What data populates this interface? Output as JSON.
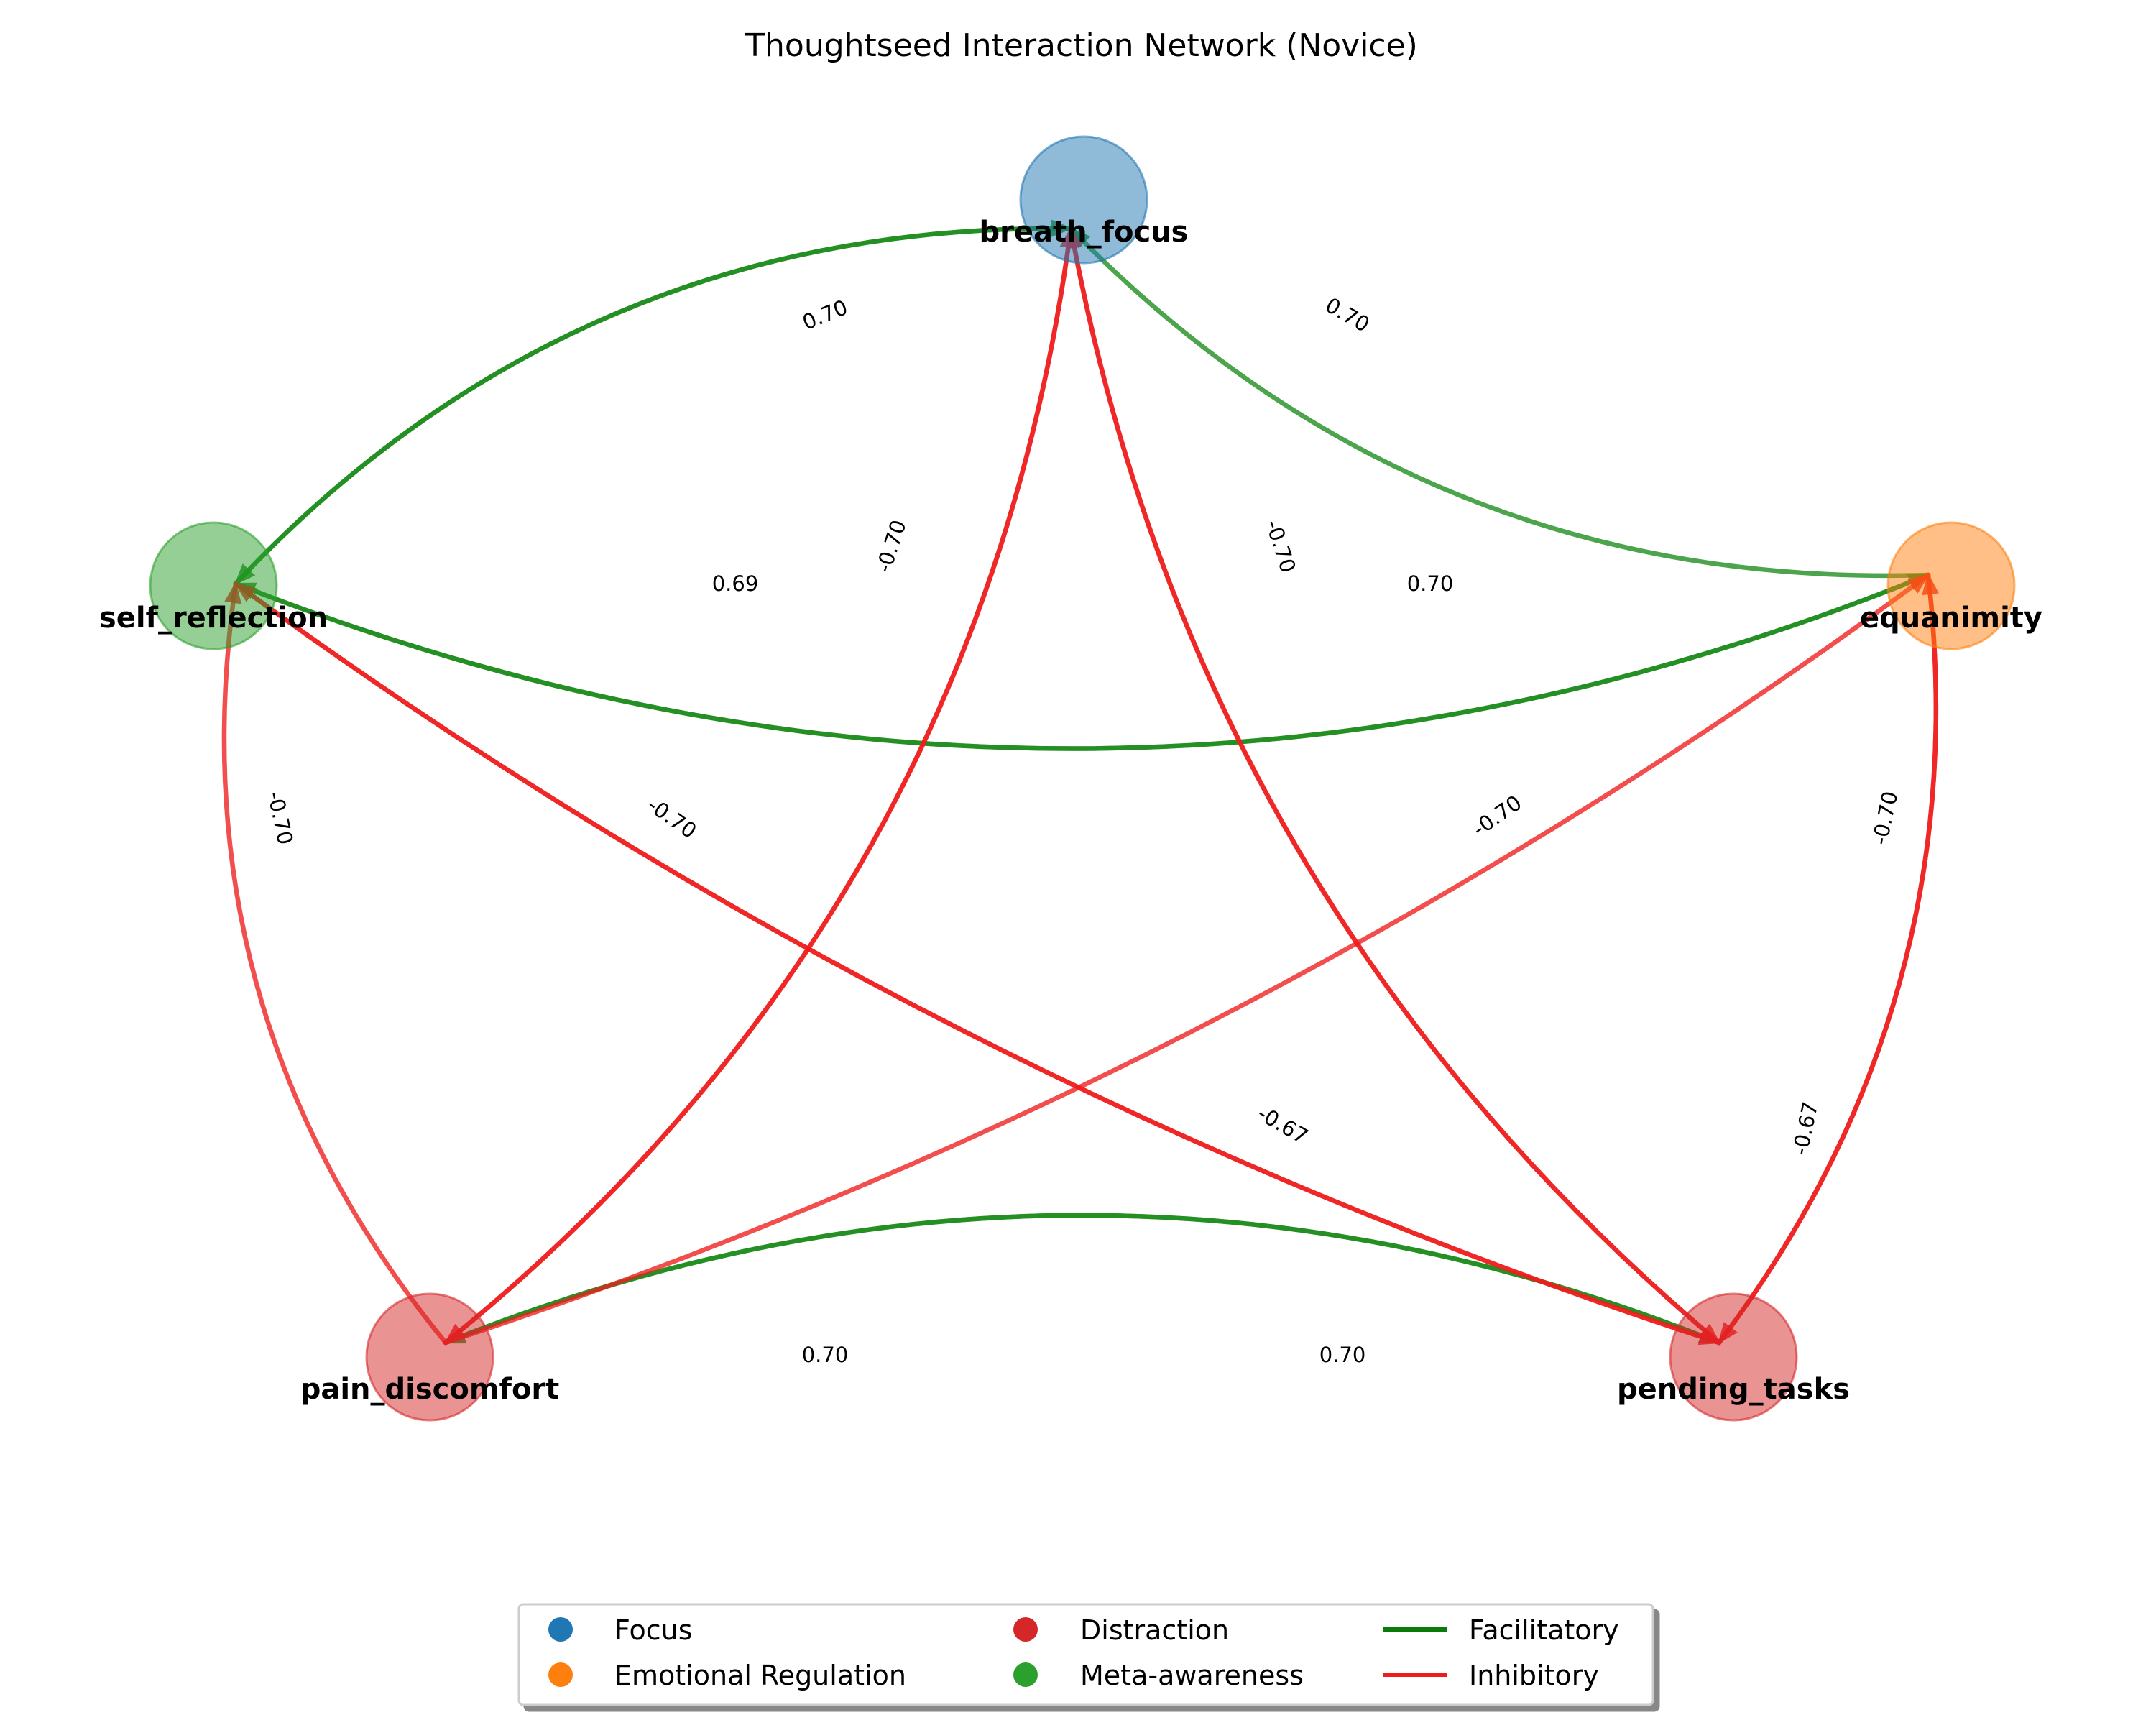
{
  "title": "Thoughtseed Interaction Network (Novice)",
  "colors": {
    "facilitatory": "#1a8a1a",
    "inhibitory": "#ee1c1c"
  },
  "categories": [
    {
      "key": "focus",
      "label": "Focus",
      "color": "#1f77b4"
    },
    {
      "key": "emotional",
      "label": "Emotional Regulation",
      "color": "#ff7f0e"
    },
    {
      "key": "distraction",
      "label": "Distraction",
      "color": "#d62728"
    },
    {
      "key": "meta",
      "label": "Meta-awareness",
      "color": "#2ca02c"
    }
  ],
  "legend": {
    "items": [
      {
        "label": "Focus",
        "kind": "marker",
        "color": "#1f77b4"
      },
      {
        "label": "Emotional Regulation",
        "kind": "marker",
        "color": "#ff7f0e"
      },
      {
        "label": "Distraction",
        "kind": "marker",
        "color": "#d62728"
      },
      {
        "label": "Meta-awareness",
        "kind": "marker",
        "color": "#2ca02c"
      },
      {
        "label": "Facilitatory",
        "kind": "line",
        "color": "#0a7a0a"
      },
      {
        "label": "Inhibitory",
        "kind": "line",
        "color": "#ee1c1c"
      }
    ]
  },
  "nodes": [
    {
      "id": "breath_focus",
      "label": "breath_focus",
      "category": "focus"
    },
    {
      "id": "equanimity",
      "label": "equanimity",
      "category": "emotional"
    },
    {
      "id": "pending_tasks",
      "label": "pending_tasks",
      "category": "distraction"
    },
    {
      "id": "pain_discomfort",
      "label": "pain_discomfort",
      "category": "distraction"
    },
    {
      "id": "self_reflection",
      "label": "self_reflection",
      "category": "meta"
    }
  ],
  "edges": [
    {
      "source": "self_reflection",
      "target": "breath_focus",
      "weight": 0.7,
      "weight_label": "0.70",
      "type": "facilitatory"
    },
    {
      "source": "breath_focus",
      "target": "self_reflection",
      "weight": 0.69,
      "weight_label": "0.69",
      "type": "facilitatory"
    },
    {
      "source": "equanimity",
      "target": "breath_focus",
      "weight": 0.7,
      "weight_label": "0.70",
      "type": "facilitatory"
    },
    {
      "source": "equanimity",
      "target": "self_reflection",
      "weight": 0.7,
      "weight_label": "0.70",
      "type": "facilitatory"
    },
    {
      "source": "self_reflection",
      "target": "equanimity",
      "weight": 0.7,
      "weight_label": "0.70",
      "type": "facilitatory"
    },
    {
      "source": "pain_discomfort",
      "target": "pending_tasks",
      "weight": 0.7,
      "weight_label": "0.70",
      "type": "facilitatory"
    },
    {
      "source": "pending_tasks",
      "target": "pain_discomfort",
      "weight": 0.7,
      "weight_label": "0.70",
      "type": "facilitatory"
    },
    {
      "source": "pain_discomfort",
      "target": "breath_focus",
      "weight": -0.7,
      "weight_label": "-0.70",
      "type": "inhibitory"
    },
    {
      "source": "breath_focus",
      "target": "pain_discomfort",
      "weight": -0.7,
      "weight_label": "-0.70",
      "type": "inhibitory"
    },
    {
      "source": "pending_tasks",
      "target": "breath_focus",
      "weight": -0.7,
      "weight_label": "-0.70",
      "type": "inhibitory"
    },
    {
      "source": "breath_focus",
      "target": "pending_tasks",
      "weight": -0.7,
      "weight_label": "-0.70",
      "type": "inhibitory"
    },
    {
      "source": "pain_discomfort",
      "target": "self_reflection",
      "weight": -0.7,
      "weight_label": "-0.70",
      "type": "inhibitory"
    },
    {
      "source": "self_reflection",
      "target": "pending_tasks",
      "weight": -0.7,
      "weight_label": "-0.70",
      "type": "inhibitory"
    },
    {
      "source": "pending_tasks",
      "target": "self_reflection",
      "weight": -0.67,
      "weight_label": "-0.67",
      "type": "inhibitory"
    },
    {
      "source": "pain_discomfort",
      "target": "equanimity",
      "weight": -0.7,
      "weight_label": "-0.70",
      "type": "inhibitory"
    },
    {
      "source": "equanimity",
      "target": "pending_tasks",
      "weight": -0.7,
      "weight_label": "-0.70",
      "type": "inhibitory"
    },
    {
      "source": "pending_tasks",
      "target": "equanimity",
      "weight": -0.67,
      "weight_label": "-0.67",
      "type": "inhibitory"
    }
  ]
}
